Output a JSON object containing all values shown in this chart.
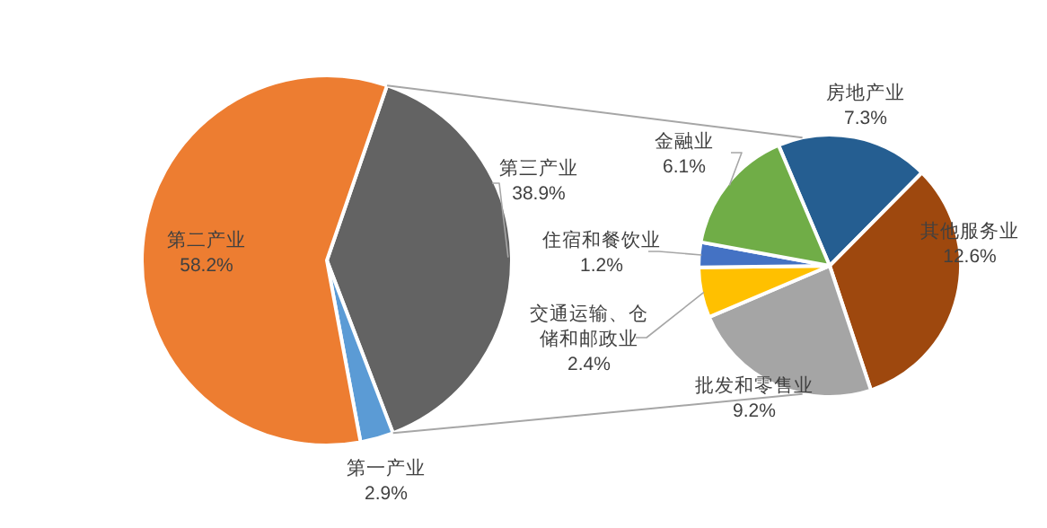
{
  "chart_data": [
    {
      "type": "pie",
      "categories": [
        "第三产业",
        "第一产业",
        "第二产业"
      ],
      "values": [
        38.9,
        2.9,
        58.2
      ],
      "value_labels": [
        "38.9%",
        "2.9%",
        "58.2%"
      ],
      "colors": [
        "#636363",
        "#5b9bd5",
        "#ed7d31"
      ]
    },
    {
      "type": "pie",
      "categories": [
        "房地产业",
        "其他服务业",
        "批发和零售业",
        "交通运输、仓储和邮政业",
        "住宿和餐饮业",
        "金融业"
      ],
      "values": [
        7.3,
        12.6,
        9.2,
        2.4,
        1.2,
        6.1
      ],
      "value_labels": [
        "7.3%",
        "12.6%",
        "9.2%",
        "2.4%",
        "1.2%",
        "6.1%"
      ],
      "colors": [
        "#255e91",
        "#9e480e",
        "#a5a5a5",
        "#ffc000",
        "#4472c4",
        "#70ad47"
      ]
    }
  ]
}
